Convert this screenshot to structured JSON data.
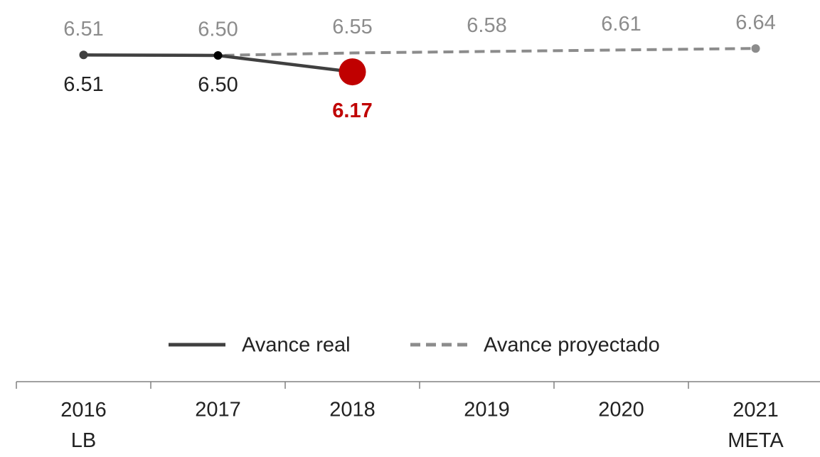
{
  "chart_data": {
    "type": "line",
    "categories": [
      "2016\nLB",
      "2017",
      "2018",
      "2019",
      "2020",
      "2021\nMETA"
    ],
    "series": [
      {
        "name": "Avance real",
        "color": "#404040",
        "highlight_color": "#c00000",
        "values": [
          6.51,
          6.5,
          6.17,
          null,
          null,
          null
        ],
        "value_labels": [
          "6.51",
          "6.50",
          "6.17",
          null,
          null,
          null
        ]
      },
      {
        "name": "Avance proyectado",
        "color": "#8c8c8c",
        "dashed": true,
        "values": [
          6.51,
          6.5,
          6.55,
          6.58,
          6.61,
          6.64
        ],
        "value_labels": [
          "6.51",
          "6.50",
          "6.55",
          "6.58",
          "6.61",
          "6.64"
        ]
      }
    ],
    "ylim": [
      5.5,
      6.7
    ],
    "legend": "bottom"
  }
}
